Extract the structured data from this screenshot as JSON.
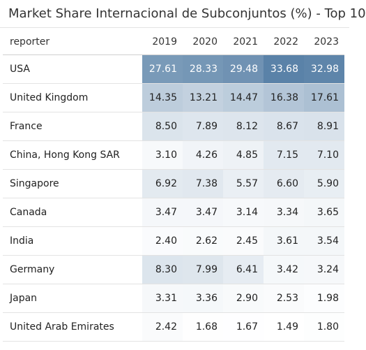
{
  "title": "Market Share Internacional de Subconjuntos (%) - Top 10",
  "header": {
    "reporter_label": "reporter",
    "years": [
      "2019",
      "2020",
      "2021",
      "2022",
      "2023"
    ]
  },
  "colors": {
    "heat_low": "#ffffff",
    "heat_high": "#5a82a8",
    "dark_text": "#ffffff",
    "text": "#222222"
  },
  "chart_data": {
    "type": "heatmap",
    "title": "Market Share Internacional de Subconjuntos (%) - Top 10",
    "columns": [
      "2019",
      "2020",
      "2021",
      "2022",
      "2023"
    ],
    "rows": [
      {
        "reporter": "USA",
        "values": [
          "27.61",
          "28.33",
          "29.48",
          "33.68",
          "32.98"
        ]
      },
      {
        "reporter": "United Kingdom",
        "values": [
          "14.35",
          "13.21",
          "14.47",
          "16.38",
          "17.61"
        ]
      },
      {
        "reporter": "France",
        "values": [
          "8.50",
          "7.89",
          "8.12",
          "8.67",
          "8.91"
        ]
      },
      {
        "reporter": "China, Hong Kong SAR",
        "values": [
          "3.10",
          "4.26",
          "4.85",
          "7.15",
          "7.10"
        ]
      },
      {
        "reporter": "Singapore",
        "values": [
          "6.92",
          "7.38",
          "5.57",
          "6.60",
          "5.90"
        ]
      },
      {
        "reporter": "Canada",
        "values": [
          "3.47",
          "3.47",
          "3.14",
          "3.34",
          "3.65"
        ]
      },
      {
        "reporter": "India",
        "values": [
          "2.40",
          "2.62",
          "2.45",
          "3.61",
          "3.54"
        ]
      },
      {
        "reporter": "Germany",
        "values": [
          "8.30",
          "7.99",
          "6.41",
          "3.42",
          "3.24"
        ]
      },
      {
        "reporter": "Japan",
        "values": [
          "3.31",
          "3.36",
          "2.90",
          "2.53",
          "1.98"
        ]
      },
      {
        "reporter": "United Arab Emirates",
        "values": [
          "2.42",
          "1.68",
          "1.67",
          "1.49",
          "1.80"
        ]
      }
    ]
  }
}
